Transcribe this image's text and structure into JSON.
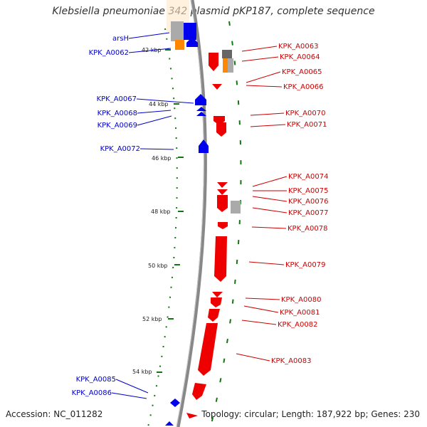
{
  "title": "Klebsiella pneumoniae 342 plasmid pKP187, complete sequence",
  "footer": {
    "accession": "Accession: NC_011282",
    "summary": "Topology: circular; Length: 187,922 bp; Genes: 230"
  },
  "colors": {
    "forward": "#0000ee",
    "reverse": "#ee0000",
    "backbone": "#888888",
    "tick": "#117711",
    "orange": "#ff8800",
    "grey_feature": "#aaaaaa"
  },
  "ruler": [
    "42 kbp",
    "44 kbp",
    "46 kbp",
    "48 kbp",
    "50 kbp",
    "52 kbp",
    "54 kbp"
  ],
  "left_labels": [
    "arsH",
    "KPK_A0062",
    "KPK_A0067",
    "KPK_A0068",
    "KPK_A0069",
    "KPK_A0072",
    "KPK_A0085",
    "KPK_A0086"
  ],
  "right_labels": [
    "KPK_A0063",
    "KPK_A0064",
    "KPK_A0065",
    "KPK_A0066",
    "KPK_A0070",
    "KPK_A0071",
    "KPK_A0074",
    "KPK_A0075",
    "KPK_A0076",
    "KPK_A0077",
    "KPK_A0078",
    "KPK_A0079",
    "KPK_A0080",
    "KPK_A0081",
    "KPK_A0082",
    "KPK_A0083"
  ]
}
